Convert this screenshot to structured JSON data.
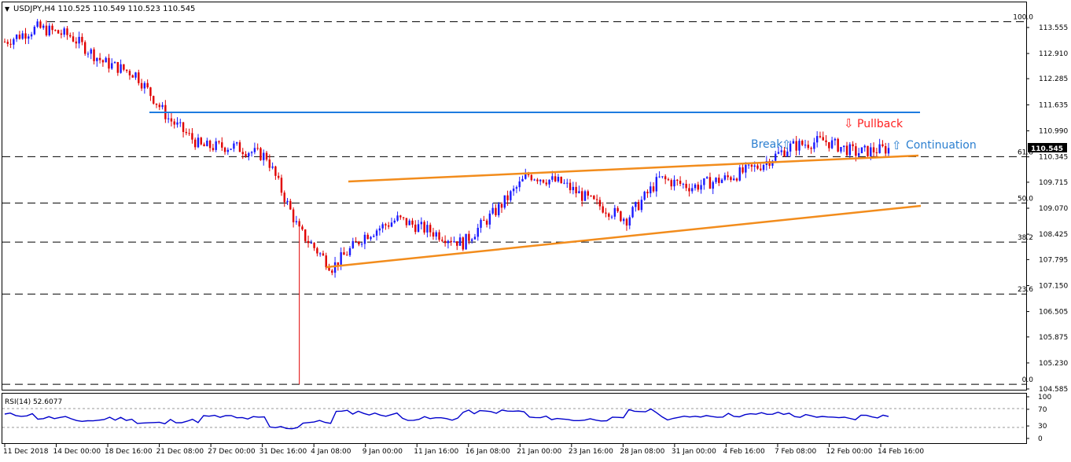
{
  "header": {
    "symbol_info": "USDJPY,H4  110.525 110.549 110.523 110.545"
  },
  "price_axis": {
    "ticks": [
      "113.555",
      "112.910",
      "112.285",
      "111.635",
      "110.990",
      "110.345",
      "109.715",
      "109.070",
      "108.425",
      "107.795",
      "107.150",
      "106.505",
      "105.875",
      "105.230",
      "104.585"
    ],
    "current_price": "110.545"
  },
  "fib_levels": [
    {
      "label": "100.0",
      "price": 113.7
    },
    {
      "label": "61.8",
      "price": 110.35
    },
    {
      "label": "50.0",
      "price": 109.2
    },
    {
      "label": "38.2",
      "price": 108.23
    },
    {
      "label": "23.6",
      "price": 106.94
    },
    {
      "label": "0.0",
      "price": 104.7
    }
  ],
  "annotations": {
    "pullback": "Pullback",
    "break": "Break",
    "continuation": "Continuation"
  },
  "rsi_panel": {
    "title": "RSI(14) 52.6077",
    "ticks": [
      "100",
      "70",
      "30",
      "0"
    ]
  },
  "time_axis": {
    "labels": [
      "11 Dec 2018",
      "14 Dec 00:00",
      "18 Dec 16:00",
      "21 Dec 08:00",
      "27 Dec 00:00",
      "31 Dec 16:00",
      "4 Jan 08:00",
      "9 Jan 00:00",
      "11 Jan 16:00",
      "16 Jan 08:00",
      "21 Jan 00:00",
      "23 Jan 16:00",
      "28 Jan 08:00",
      "31 Jan 00:00",
      "4 Feb 16:00",
      "7 Feb 08:00",
      "12 Feb 00:00",
      "14 Feb 16:00"
    ]
  },
  "colors": {
    "bull": "#1a1aff",
    "bear": "#e00000",
    "resistance": "#1e7ce0",
    "channel": "#f28c1c",
    "rsi": "#0000cc",
    "pullback_text": "#ff2020",
    "break_text": "#2b7fd0"
  },
  "chart_data": {
    "type": "candlestick",
    "symbol": "USDJPY",
    "timeframe": "H4",
    "x": [
      "11 Dec 2018",
      "14 Dec",
      "18 Dec",
      "21 Dec",
      "27 Dec",
      "31 Dec",
      "4 Jan",
      "9 Jan",
      "11 Jan",
      "16 Jan",
      "21 Jan",
      "23 Jan",
      "28 Jan",
      "31 Jan",
      "4 Feb",
      "7 Feb",
      "12 Feb",
      "14 Feb"
    ],
    "close_path": [
      113.2,
      113.55,
      113.35,
      112.7,
      112.4,
      111.3,
      110.6,
      110.6,
      110.35,
      108.5,
      107.6,
      108.4,
      108.8,
      108.5,
      108.2,
      109.0,
      109.9,
      109.7,
      109.2,
      108.8,
      109.8,
      109.6,
      109.8,
      110.1,
      110.6,
      110.75,
      110.45,
      110.55
    ],
    "extremes": {
      "high": 113.7,
      "low": 104.7
    },
    "horizontal_resistance": 111.4,
    "rsi_value": 52.6077,
    "ylim": [
      104.585,
      113.555
    ]
  }
}
